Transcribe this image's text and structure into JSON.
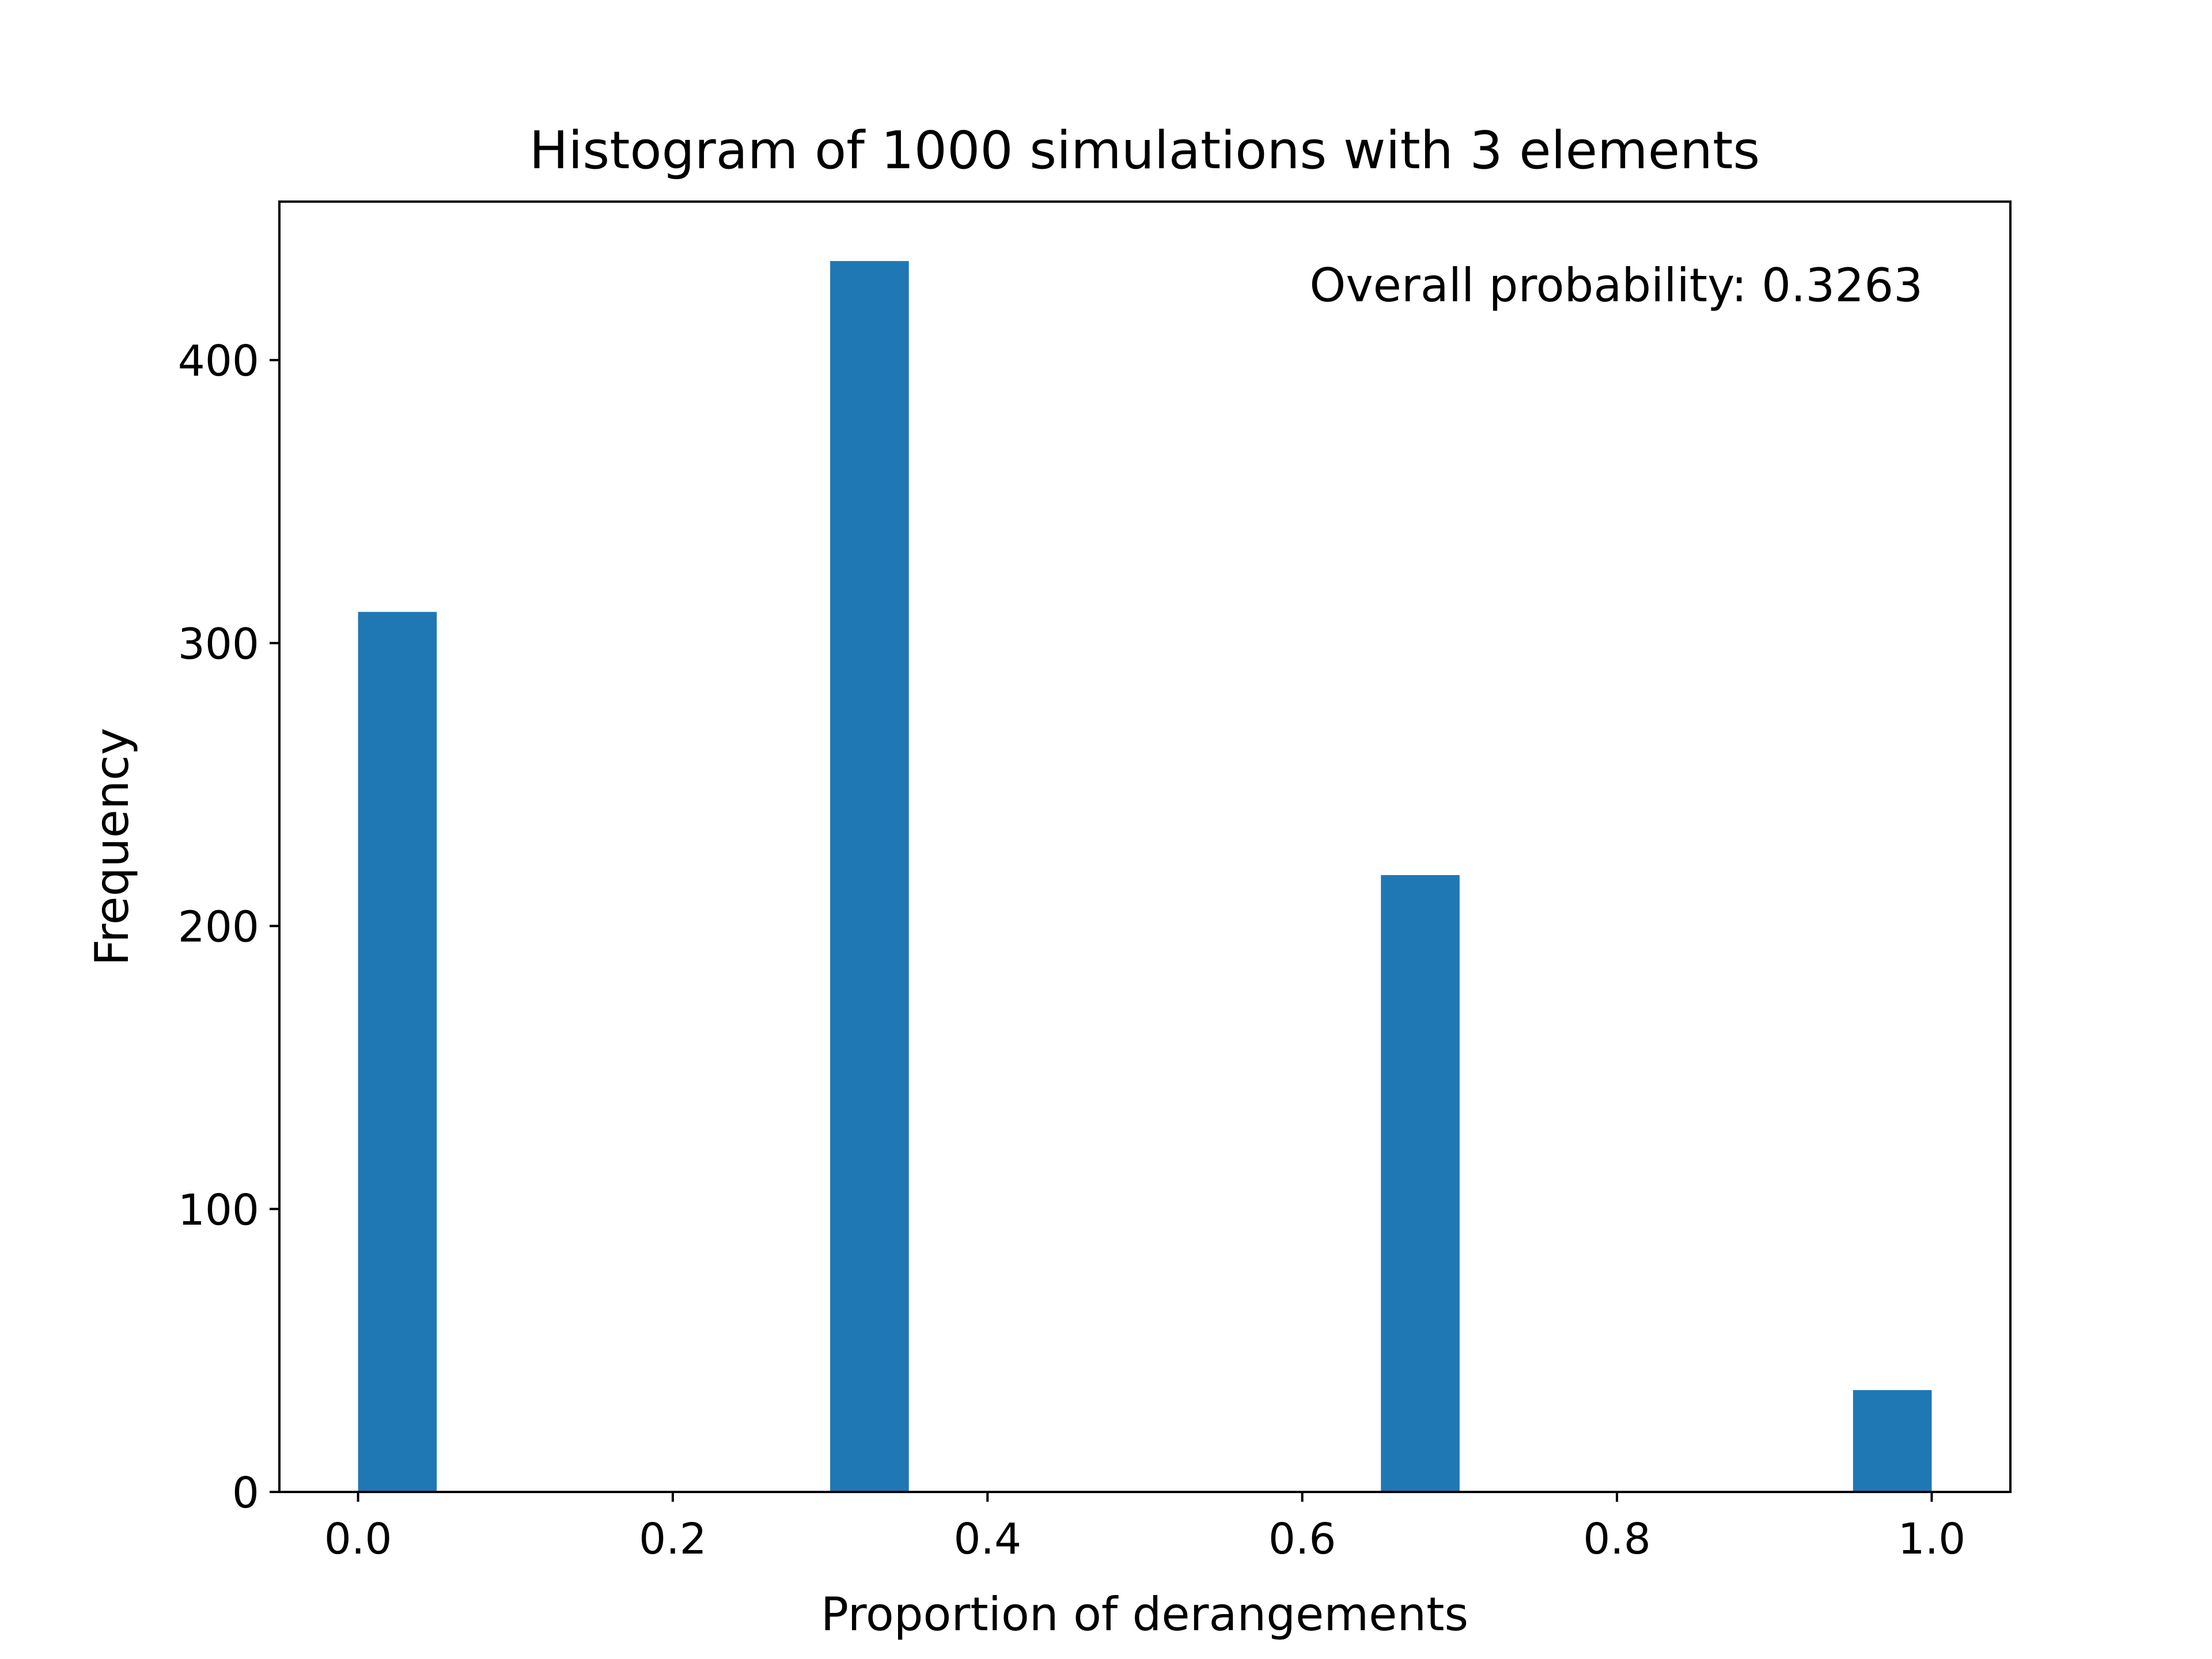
{
  "chart_data": {
    "type": "bar",
    "title": "Histogram of 1000 simulations with 3 elements",
    "xlabel": "Proportion of derangements",
    "ylabel": "Frequency",
    "annotation": "Overall probability: 0.3263",
    "xlim": [
      -0.05,
      1.05
    ],
    "ylim": [
      0,
      456
    ],
    "bin_width": 0.05,
    "bins": [
      {
        "x0": 0.0,
        "x1": 0.05,
        "value": 311
      },
      {
        "x0": 0.3,
        "x1": 0.35,
        "value": 435
      },
      {
        "x0": 0.65,
        "x1": 0.7,
        "value": 218
      },
      {
        "x0": 0.95,
        "x1": 1.0,
        "value": 36
      }
    ],
    "x_ticks": [
      {
        "value": 0.0,
        "label": "0.0"
      },
      {
        "value": 0.2,
        "label": "0.2"
      },
      {
        "value": 0.4,
        "label": "0.4"
      },
      {
        "value": 0.6,
        "label": "0.6"
      },
      {
        "value": 0.8,
        "label": "0.8"
      },
      {
        "value": 1.0,
        "label": "1.0"
      }
    ],
    "y_ticks": [
      {
        "value": 0,
        "label": "0"
      },
      {
        "value": 100,
        "label": "100"
      },
      {
        "value": 200,
        "label": "200"
      },
      {
        "value": 300,
        "label": "300"
      },
      {
        "value": 400,
        "label": "400"
      }
    ],
    "grid": false,
    "colors": {
      "bar": "#1f77b4",
      "axes": "#000000"
    }
  }
}
